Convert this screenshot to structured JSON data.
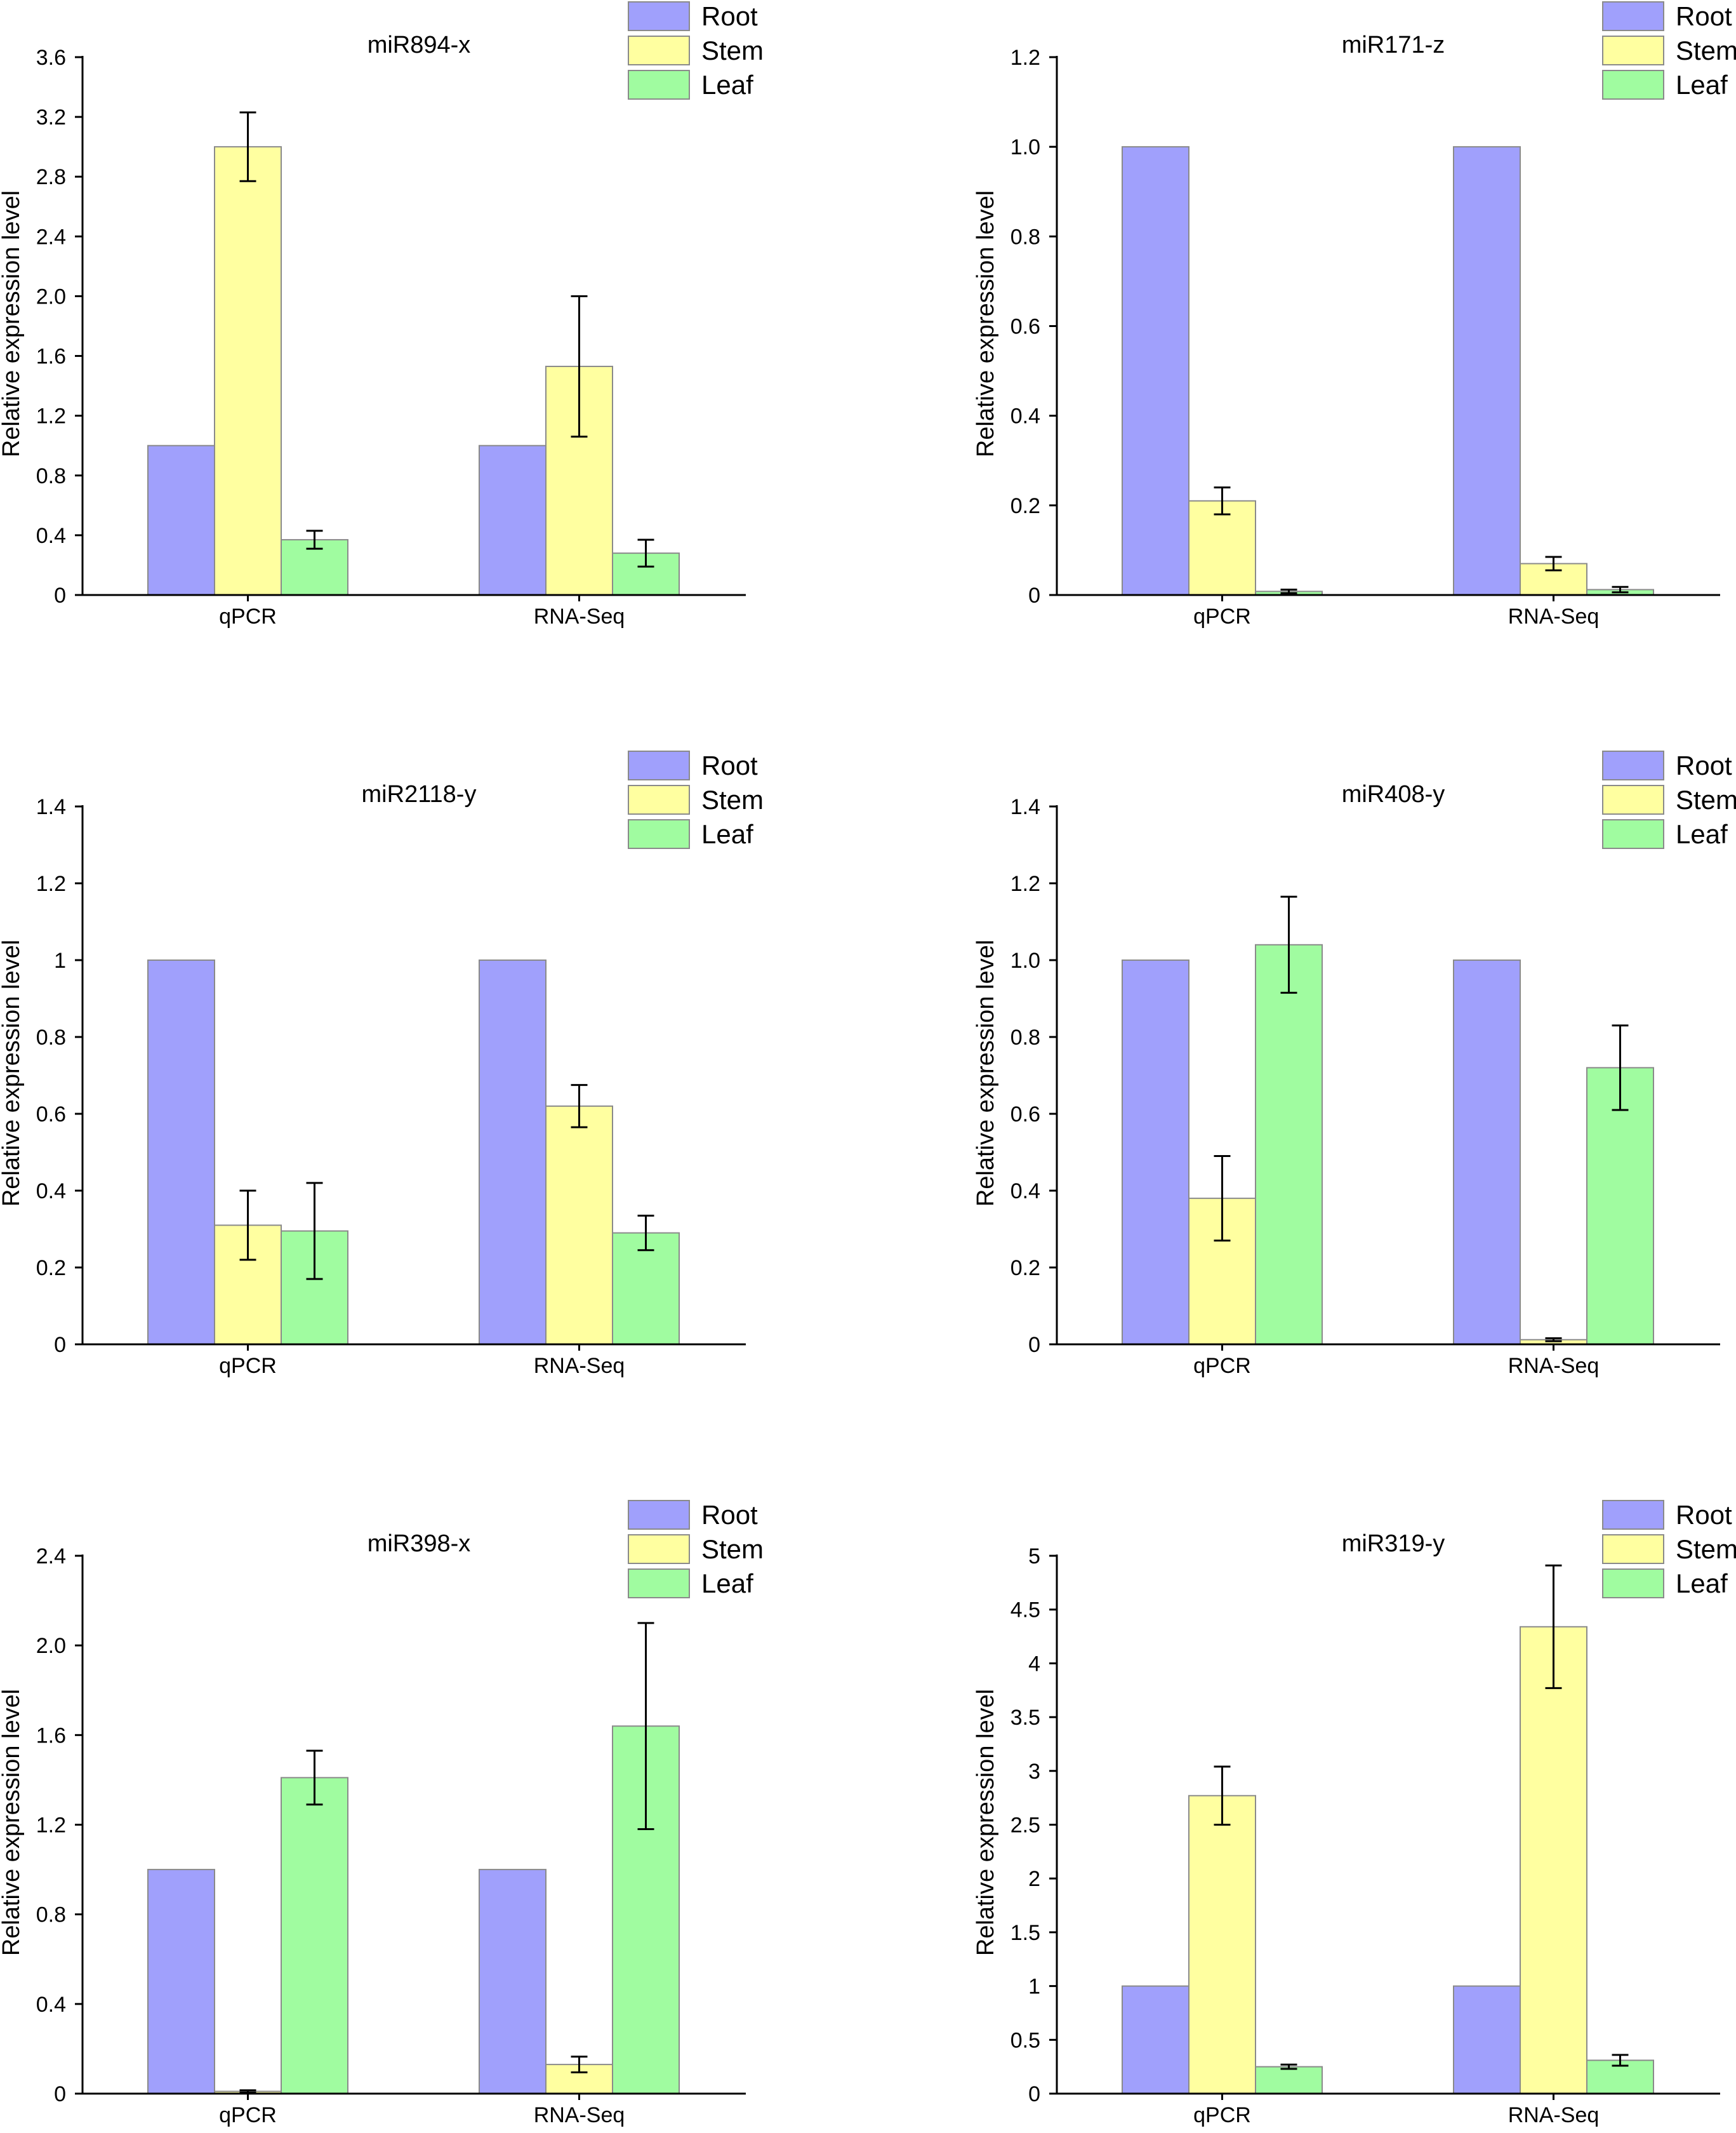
{
  "chart_data": [
    {
      "type": "bar",
      "title": "miR894-x",
      "ylabel": "Relative expression level",
      "categories": [
        "qPCR",
        "RNA-Seq"
      ],
      "ylim": [
        0,
        3.6
      ],
      "yticks": [
        "0",
        "0.4",
        "0.8",
        "1.2",
        "1.6",
        "2.0",
        "2.4",
        "2.8",
        "3.2",
        "3.6"
      ],
      "series": [
        {
          "name": "Root",
          "color": "#a0a0fc",
          "values": [
            1.0,
            1.0
          ],
          "errors": [
            0,
            0
          ]
        },
        {
          "name": "Stem",
          "color": "#ffffa0",
          "values": [
            3.0,
            1.53
          ],
          "errors": [
            0.23,
            0.47
          ]
        },
        {
          "name": "Leaf",
          "color": "#a0fca0",
          "values": [
            0.37,
            0.28
          ],
          "errors": [
            0.06,
            0.09
          ]
        }
      ]
    },
    {
      "type": "bar",
      "title": "miR171-z",
      "ylabel": "Relative expression level",
      "categories": [
        "qPCR",
        "RNA-Seq"
      ],
      "ylim": [
        0,
        1.2
      ],
      "yticks": [
        "0",
        "0.2",
        "0.4",
        "0.6",
        "0.8",
        "1.0",
        "1.2"
      ],
      "series": [
        {
          "name": "Root",
          "color": "#a0a0fc",
          "values": [
            1.0,
            1.0
          ],
          "errors": [
            0,
            0
          ]
        },
        {
          "name": "Stem",
          "color": "#ffffa0",
          "values": [
            0.21,
            0.07
          ],
          "errors": [
            0.03,
            0.015
          ]
        },
        {
          "name": "Leaf",
          "color": "#a0fca0",
          "values": [
            0.008,
            0.012
          ],
          "errors": [
            0.004,
            0.006
          ]
        }
      ]
    },
    {
      "type": "bar",
      "title": "miR2118-y",
      "ylabel": "Relative expression level",
      "categories": [
        "qPCR",
        "RNA-Seq"
      ],
      "ylim": [
        0,
        1.4
      ],
      "yticks": [
        "0",
        "0.2",
        "0.4",
        "0.6",
        "0.8",
        "1",
        "1.2",
        "1.4"
      ],
      "series": [
        {
          "name": "Root",
          "color": "#a0a0fc",
          "values": [
            1.0,
            1.0
          ],
          "errors": [
            0,
            0
          ]
        },
        {
          "name": "Stem",
          "color": "#ffffa0",
          "values": [
            0.31,
            0.62
          ],
          "errors": [
            0.09,
            0.055
          ]
        },
        {
          "name": "Leaf",
          "color": "#a0fca0",
          "values": [
            0.295,
            0.29
          ],
          "errors": [
            0.125,
            0.045
          ]
        }
      ]
    },
    {
      "type": "bar",
      "title": "miR408-y",
      "ylabel": "Relative expression level",
      "categories": [
        "qPCR",
        "RNA-Seq"
      ],
      "ylim": [
        0,
        1.4
      ],
      "yticks": [
        "0",
        "0.2",
        "0.4",
        "0.6",
        "0.8",
        "1.0",
        "1.2",
        "1.4"
      ],
      "series": [
        {
          "name": "Root",
          "color": "#a0a0fc",
          "values": [
            1.0,
            1.0
          ],
          "errors": [
            0,
            0
          ]
        },
        {
          "name": "Stem",
          "color": "#ffffa0",
          "values": [
            0.38,
            0.012
          ],
          "errors": [
            0.11,
            0.004
          ]
        },
        {
          "name": "Leaf",
          "color": "#a0fca0",
          "values": [
            1.04,
            0.72
          ],
          "errors": [
            0.125,
            0.11
          ]
        }
      ]
    },
    {
      "type": "bar",
      "title": "miR398-x",
      "ylabel": "Relative expression level",
      "categories": [
        "qPCR",
        "RNA-Seq"
      ],
      "ylim": [
        0,
        2.4
      ],
      "yticks": [
        "0",
        "0.4",
        "0.8",
        "1.2",
        "1.6",
        "2.0",
        "2.4"
      ],
      "series": [
        {
          "name": "Root",
          "color": "#a0a0fc",
          "values": [
            1.0,
            1.0
          ],
          "errors": [
            0,
            0
          ]
        },
        {
          "name": "Stem",
          "color": "#ffffa0",
          "values": [
            0.01,
            0.13
          ],
          "errors": [
            0.005,
            0.035
          ]
        },
        {
          "name": "Leaf",
          "color": "#a0fca0",
          "values": [
            1.41,
            1.64
          ],
          "errors": [
            0.12,
            0.46
          ]
        }
      ]
    },
    {
      "type": "bar",
      "title": "miR319-y",
      "ylabel": "Relative expression level",
      "categories": [
        "qPCR",
        "RNA-Seq"
      ],
      "ylim": [
        0,
        5
      ],
      "yticks": [
        "0",
        "0.5",
        "1",
        "1.5",
        "2",
        "2.5",
        "3",
        "3.5",
        "4",
        "4.5",
        "5"
      ],
      "series": [
        {
          "name": "Root",
          "color": "#a0a0fc",
          "values": [
            1.0,
            1.0
          ],
          "errors": [
            0,
            0
          ]
        },
        {
          "name": "Stem",
          "color": "#ffffa0",
          "values": [
            2.77,
            4.34
          ],
          "errors": [
            0.27,
            0.57
          ]
        },
        {
          "name": "Leaf",
          "color": "#a0fca0",
          "values": [
            0.25,
            0.31
          ],
          "errors": [
            0.02,
            0.05
          ]
        }
      ]
    }
  ]
}
